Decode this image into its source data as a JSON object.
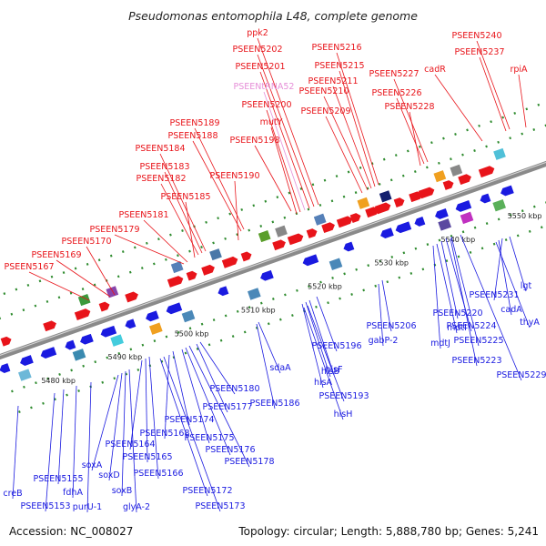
{
  "title": "Pseudomonas entomophila L48, complete genome",
  "accession": "Accession: NC_008027",
  "topology": "Topology: circular; Length: 5,888,780 bp; Genes: 5,241",
  "colors": {
    "forward": "#e8141a",
    "reverse": "#1a1ae0",
    "rna_label": "#e68fd8",
    "backbone": "#8a8a8a"
  },
  "scale_ticks": [
    "5480 kbp",
    "5490 kbp",
    "5500 kbp",
    "5510 kbp",
    "5520 kbp",
    "5530 kbp",
    "5540 kbp",
    "5550 kbp"
  ],
  "forward_labels": [
    {
      "text": "ppk2"
    },
    {
      "text": "PSEEN5202"
    },
    {
      "text": "PSEEN5201"
    },
    {
      "text": "PSEENtRNA52",
      "rna": true
    },
    {
      "text": "PSEEN5200"
    },
    {
      "text": "mutY"
    },
    {
      "text": "PSEEN5198"
    },
    {
      "text": "PSEEN5216"
    },
    {
      "text": "PSEEN5215"
    },
    {
      "text": "PSEEN5211"
    },
    {
      "text": "PSEEN5210"
    },
    {
      "text": "PSEEN5209"
    },
    {
      "text": "PSEEN5227"
    },
    {
      "text": "PSEEN5226"
    },
    {
      "text": "PSEEN5228"
    },
    {
      "text": "PSEEN5240"
    },
    {
      "text": "PSEEN5237"
    },
    {
      "text": "cadR"
    },
    {
      "text": "rpiA"
    },
    {
      "text": "PSEEN5189"
    },
    {
      "text": "PSEEN5188"
    },
    {
      "text": "PSEEN5184"
    },
    {
      "text": "PSEEN5183"
    },
    {
      "text": "PSEEN5182"
    },
    {
      "text": "PSEEN5190"
    },
    {
      "text": "PSEEN5185"
    },
    {
      "text": "PSEEN5181"
    },
    {
      "text": "PSEEN5179"
    },
    {
      "text": "PSEEN5170"
    },
    {
      "text": "PSEEN5169"
    },
    {
      "text": "PSEEN5167"
    }
  ],
  "reverse_labels": [
    {
      "text": "lgt"
    },
    {
      "text": "PSEEN5231"
    },
    {
      "text": "cadA"
    },
    {
      "text": "thyA"
    },
    {
      "text": "PSEEN5220"
    },
    {
      "text": "mdtI"
    },
    {
      "text": "mdtJ"
    },
    {
      "text": "PSEEN5224"
    },
    {
      "text": "PSEEN5225"
    },
    {
      "text": "PSEEN5223"
    },
    {
      "text": "PSEEN5229"
    },
    {
      "text": "PSEEN5206"
    },
    {
      "text": "gabP-2"
    },
    {
      "text": "PSEEN5196"
    },
    {
      "text": "hisF"
    },
    {
      "text": "hisB"
    },
    {
      "text": "hisA"
    },
    {
      "text": "PSEEN5193"
    },
    {
      "text": "hisH"
    },
    {
      "text": "sdaA"
    },
    {
      "text": "PSEEN5186"
    },
    {
      "text": "PSEEN5180"
    },
    {
      "text": "PSEEN5177"
    },
    {
      "text": "PSEEN5174"
    },
    {
      "text": "PSEEN5168"
    },
    {
      "text": "PSEEN5175"
    },
    {
      "text": "PSEEN5176"
    },
    {
      "text": "PSEEN5178"
    },
    {
      "text": "PSEEN5164"
    },
    {
      "text": "PSEEN5165"
    },
    {
      "text": "PSEEN5166"
    },
    {
      "text": "PSEEN5172"
    },
    {
      "text": "PSEEN5173"
    },
    {
      "text": "soxA"
    },
    {
      "text": "soxD"
    },
    {
      "text": "soxB"
    },
    {
      "text": "glyA-2"
    },
    {
      "text": "purU-1"
    },
    {
      "text": "fdhA"
    },
    {
      "text": "PSEEN5155"
    },
    {
      "text": "PSEEN5153"
    },
    {
      "text": "creB"
    }
  ]
}
